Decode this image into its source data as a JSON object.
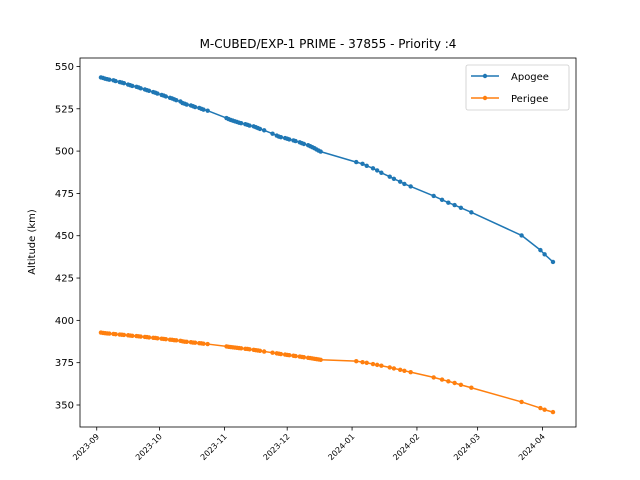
{
  "chart_data": {
    "type": "line",
    "title": "M-CUBED/EXP-1 PRIME - 37855 - Priority :4",
    "xlabel": "",
    "ylabel": "Altitude (km)",
    "xlim": [
      "2023-08-24",
      "2024-04-17"
    ],
    "ylim": [
      337,
      555
    ],
    "x_ticks": [
      "2023-09",
      "2023-10",
      "2023-11",
      "2023-12",
      "2024-01",
      "2024-02",
      "2024-03",
      "2024-04"
    ],
    "y_ticks": [
      350,
      375,
      400,
      425,
      450,
      475,
      500,
      525,
      550
    ],
    "grid": false,
    "legend_position": "top-right",
    "series": [
      {
        "name": "Apogee",
        "color": "#1f77b4",
        "marker": "circle",
        "points": [
          [
            "2023-09-03",
            543.5
          ],
          [
            "2023-09-04",
            543.2
          ],
          [
            "2023-09-05",
            542.8
          ],
          [
            "2023-09-06",
            542.5
          ],
          [
            "2023-09-07",
            542.2
          ],
          [
            "2023-09-09",
            541.8
          ],
          [
            "2023-09-10",
            541.4
          ],
          [
            "2023-09-12",
            540.8
          ],
          [
            "2023-09-13",
            540.5
          ],
          [
            "2023-09-14",
            540.1
          ],
          [
            "2023-09-16",
            539.3
          ],
          [
            "2023-09-17",
            538.9
          ],
          [
            "2023-09-18",
            538.5
          ],
          [
            "2023-09-20",
            538.0
          ],
          [
            "2023-09-21",
            537.6
          ],
          [
            "2023-09-22",
            537.1
          ],
          [
            "2023-09-24",
            536.4
          ],
          [
            "2023-09-25",
            536.0
          ],
          [
            "2023-09-26",
            535.6
          ],
          [
            "2023-09-28",
            534.9
          ],
          [
            "2023-09-29",
            534.5
          ],
          [
            "2023-09-30",
            534.0
          ],
          [
            "2023-10-02",
            533.2
          ],
          [
            "2023-10-03",
            532.8
          ],
          [
            "2023-10-04",
            532.3
          ],
          [
            "2023-10-06",
            531.5
          ],
          [
            "2023-10-07",
            531.1
          ],
          [
            "2023-10-08",
            530.6
          ],
          [
            "2023-10-09",
            530.1
          ],
          [
            "2023-10-11",
            529.3
          ],
          [
            "2023-10-12",
            528.4
          ],
          [
            "2023-10-13",
            528.0
          ],
          [
            "2023-10-14",
            527.5
          ],
          [
            "2023-10-16",
            527.0
          ],
          [
            "2023-10-17",
            526.5
          ],
          [
            "2023-10-18",
            526.0
          ],
          [
            "2023-10-20",
            525.5
          ],
          [
            "2023-10-21",
            525.0
          ],
          [
            "2023-10-22",
            524.5
          ],
          [
            "2023-10-24",
            523.9
          ],
          [
            "2023-11-02",
            519.5
          ],
          [
            "2023-11-03",
            518.9
          ],
          [
            "2023-11-04",
            518.4
          ],
          [
            "2023-11-05",
            518.0
          ],
          [
            "2023-11-06",
            517.6
          ],
          [
            "2023-11-07",
            517.2
          ],
          [
            "2023-11-08",
            516.8
          ],
          [
            "2023-11-09",
            516.5
          ],
          [
            "2023-11-11",
            515.9
          ],
          [
            "2023-11-12",
            515.5
          ],
          [
            "2023-11-13",
            515.1
          ],
          [
            "2023-11-15",
            514.6
          ],
          [
            "2023-11-16",
            514.1
          ],
          [
            "2023-11-17",
            513.6
          ],
          [
            "2023-11-18",
            513.1
          ],
          [
            "2023-11-20",
            512.3
          ],
          [
            "2023-11-24",
            510.3
          ],
          [
            "2023-11-26",
            509.2
          ],
          [
            "2023-11-27",
            508.6
          ],
          [
            "2023-11-28",
            508.2
          ],
          [
            "2023-11-30",
            507.7
          ],
          [
            "2023-12-01",
            507.3
          ],
          [
            "2023-12-02",
            506.9
          ],
          [
            "2023-12-04",
            506.3
          ],
          [
            "2023-12-05",
            505.9
          ],
          [
            "2023-12-07",
            505.2
          ],
          [
            "2023-12-08",
            504.7
          ],
          [
            "2023-12-09",
            504.2
          ],
          [
            "2023-12-11",
            503.5
          ],
          [
            "2023-12-12",
            502.9
          ],
          [
            "2023-12-13",
            502.3
          ],
          [
            "2023-12-14",
            501.7
          ],
          [
            "2023-12-15",
            501.0
          ],
          [
            "2023-12-16",
            500.3
          ],
          [
            "2023-12-17",
            499.7
          ],
          [
            "2024-01-03",
            493.5
          ],
          [
            "2024-01-06",
            492.5
          ],
          [
            "2024-01-08",
            491.3
          ],
          [
            "2024-01-11",
            489.8
          ],
          [
            "2024-01-13",
            488.6
          ],
          [
            "2024-01-15",
            487.2
          ],
          [
            "2024-01-19",
            484.9
          ],
          [
            "2024-01-21",
            483.6
          ],
          [
            "2024-01-24",
            481.9
          ],
          [
            "2024-01-26",
            480.6
          ],
          [
            "2024-01-29",
            479.1
          ],
          [
            "2024-02-09",
            473.5
          ],
          [
            "2024-02-13",
            471.2
          ],
          [
            "2024-02-16",
            469.5
          ],
          [
            "2024-02-19",
            468.1
          ],
          [
            "2024-02-22",
            466.5
          ],
          [
            "2024-02-27",
            463.8
          ],
          [
            "2024-03-22",
            450.2
          ],
          [
            "2024-03-31",
            441.5
          ],
          [
            "2024-04-02",
            439.0
          ],
          [
            "2024-04-06",
            434.5
          ]
        ]
      },
      {
        "name": "Perigee",
        "color": "#ff7f0e",
        "marker": "circle",
        "points": [
          [
            "2023-09-03",
            392.8
          ],
          [
            "2023-09-04",
            392.6
          ],
          [
            "2023-09-05",
            392.4
          ],
          [
            "2023-09-06",
            392.3
          ],
          [
            "2023-09-07",
            392.2
          ],
          [
            "2023-09-09",
            392.0
          ],
          [
            "2023-09-10",
            391.8
          ],
          [
            "2023-09-12",
            391.6
          ],
          [
            "2023-09-13",
            391.5
          ],
          [
            "2023-09-14",
            391.4
          ],
          [
            "2023-09-16",
            391.2
          ],
          [
            "2023-09-17",
            391.0
          ],
          [
            "2023-09-18",
            390.9
          ],
          [
            "2023-09-20",
            390.7
          ],
          [
            "2023-09-21",
            390.6
          ],
          [
            "2023-09-22",
            390.4
          ],
          [
            "2023-09-24",
            390.2
          ],
          [
            "2023-09-25",
            390.1
          ],
          [
            "2023-09-26",
            389.9
          ],
          [
            "2023-09-28",
            389.7
          ],
          [
            "2023-09-29",
            389.6
          ],
          [
            "2023-09-30",
            389.4
          ],
          [
            "2023-10-02",
            389.2
          ],
          [
            "2023-10-03",
            389.0
          ],
          [
            "2023-10-04",
            388.9
          ],
          [
            "2023-10-06",
            388.6
          ],
          [
            "2023-10-07",
            388.5
          ],
          [
            "2023-10-08",
            388.3
          ],
          [
            "2023-10-09",
            388.2
          ],
          [
            "2023-10-11",
            387.9
          ],
          [
            "2023-10-12",
            387.6
          ],
          [
            "2023-10-13",
            387.4
          ],
          [
            "2023-10-14",
            387.3
          ],
          [
            "2023-10-16",
            387.1
          ],
          [
            "2023-10-17",
            386.9
          ],
          [
            "2023-10-18",
            386.8
          ],
          [
            "2023-10-20",
            386.5
          ],
          [
            "2023-10-21",
            386.4
          ],
          [
            "2023-10-22",
            386.2
          ],
          [
            "2023-10-24",
            386.0
          ],
          [
            "2023-11-02",
            384.6
          ],
          [
            "2023-11-03",
            384.4
          ],
          [
            "2023-11-04",
            384.2
          ],
          [
            "2023-11-05",
            384.1
          ],
          [
            "2023-11-06",
            383.9
          ],
          [
            "2023-11-07",
            383.8
          ],
          [
            "2023-11-08",
            383.6
          ],
          [
            "2023-11-09",
            383.5
          ],
          [
            "2023-11-11",
            383.2
          ],
          [
            "2023-11-12",
            383.1
          ],
          [
            "2023-11-13",
            382.9
          ],
          [
            "2023-11-15",
            382.6
          ],
          [
            "2023-11-16",
            382.4
          ],
          [
            "2023-11-17",
            382.2
          ],
          [
            "2023-11-18",
            382.0
          ],
          [
            "2023-11-20",
            381.6
          ],
          [
            "2023-11-24",
            380.9
          ],
          [
            "2023-11-26",
            380.5
          ],
          [
            "2023-11-27",
            380.3
          ],
          [
            "2023-11-28",
            380.1
          ],
          [
            "2023-11-30",
            379.8
          ],
          [
            "2023-12-01",
            379.6
          ],
          [
            "2023-12-02",
            379.4
          ],
          [
            "2023-12-04",
            379.1
          ],
          [
            "2023-12-05",
            378.9
          ],
          [
            "2023-12-07",
            378.6
          ],
          [
            "2023-12-08",
            378.4
          ],
          [
            "2023-12-09",
            378.2
          ],
          [
            "2023-12-11",
            377.9
          ],
          [
            "2023-12-12",
            377.7
          ],
          [
            "2023-12-13",
            377.5
          ],
          [
            "2023-12-14",
            377.3
          ],
          [
            "2023-12-15",
            377.1
          ],
          [
            "2023-12-16",
            376.9
          ],
          [
            "2023-12-17",
            376.7
          ],
          [
            "2024-01-03",
            375.9
          ],
          [
            "2024-01-06",
            375.3
          ],
          [
            "2024-01-08",
            374.9
          ],
          [
            "2024-01-11",
            374.2
          ],
          [
            "2024-01-13",
            373.7
          ],
          [
            "2024-01-15",
            373.2
          ],
          [
            "2024-01-19",
            372.2
          ],
          [
            "2024-01-21",
            371.6
          ],
          [
            "2024-01-24",
            370.8
          ],
          [
            "2024-01-26",
            370.2
          ],
          [
            "2024-01-29",
            369.4
          ],
          [
            "2024-02-09",
            366.3
          ],
          [
            "2024-02-13",
            365.0
          ],
          [
            "2024-02-16",
            364.0
          ],
          [
            "2024-02-19",
            363.0
          ],
          [
            "2024-02-22",
            361.9
          ],
          [
            "2024-02-27",
            360.2
          ],
          [
            "2024-03-22",
            351.8
          ],
          [
            "2024-03-31",
            348.2
          ],
          [
            "2024-04-02",
            347.2
          ],
          [
            "2024-04-06",
            345.8
          ]
        ]
      }
    ]
  }
}
